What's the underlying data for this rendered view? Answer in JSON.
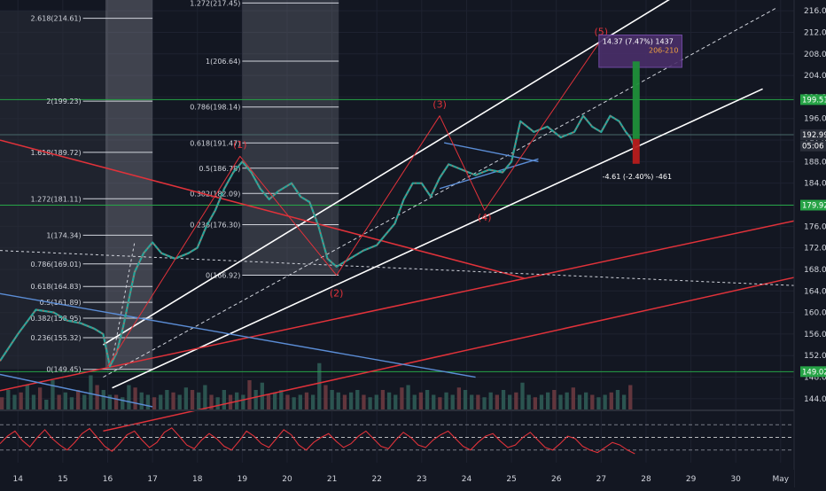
{
  "chart_data": {
    "type": "line",
    "symbol_series": "price (candles)",
    "y_axis": {
      "scale": "linear",
      "ylim": [
        142,
        218
      ],
      "ticks": [
        216,
        212,
        208,
        204,
        200,
        196,
        192,
        188,
        184,
        180,
        176,
        172,
        168,
        164,
        160,
        156,
        152,
        148,
        144
      ],
      "tick_labels": [
        "216.00",
        "212.00",
        "208.00",
        "204.00",
        "200.00",
        "196.00",
        "192.00",
        "188.00",
        "184.00",
        "180.00",
        "176.00",
        "172.00",
        "168.00",
        "164.00",
        "160.00",
        "156.00",
        "152.00",
        "148.00",
        "144.00"
      ]
    },
    "x_axis": {
      "ticks": [
        14,
        15,
        16,
        17,
        18,
        19,
        20,
        21,
        22,
        23,
        24,
        25,
        26,
        27,
        28,
        29,
        30,
        31
      ],
      "tick_labels": [
        "14",
        "15",
        "16",
        "17",
        "18",
        "19",
        "20",
        "21",
        "22",
        "23",
        "24",
        "25",
        "26",
        "27",
        "28",
        "29",
        "30",
        "May"
      ],
      "xlim": [
        13.6,
        31.3
      ]
    },
    "price_path": [
      [
        13.6,
        151.0
      ],
      [
        14.0,
        156.0
      ],
      [
        14.4,
        160.5
      ],
      [
        14.8,
        160.0
      ],
      [
        15.1,
        158.5
      ],
      [
        15.4,
        158.0
      ],
      [
        15.7,
        157.0
      ],
      [
        15.9,
        156.0
      ],
      [
        16.05,
        150.0
      ],
      [
        16.2,
        152.5
      ],
      [
        16.35,
        157.5
      ],
      [
        16.6,
        167.5
      ],
      [
        16.8,
        171.0
      ],
      [
        17.0,
        173.0
      ],
      [
        17.2,
        171.0
      ],
      [
        17.5,
        170.0
      ],
      [
        17.8,
        171.0
      ],
      [
        18.0,
        172.0
      ],
      [
        18.2,
        176.0
      ],
      [
        18.4,
        179.0
      ],
      [
        18.6,
        183.0
      ],
      [
        18.8,
        186.0
      ],
      [
        19.0,
        188.0
      ],
      [
        19.2,
        186.0
      ],
      [
        19.4,
        183.0
      ],
      [
        19.6,
        181.0
      ],
      [
        19.8,
        182.5
      ],
      [
        20.1,
        184.0
      ],
      [
        20.3,
        181.5
      ],
      [
        20.5,
        180.5
      ],
      [
        20.7,
        176.0
      ],
      [
        20.9,
        170.0
      ],
      [
        21.1,
        168.5
      ],
      [
        21.4,
        170.0
      ],
      [
        21.7,
        171.5
      ],
      [
        22.0,
        172.5
      ],
      [
        22.2,
        174.5
      ],
      [
        22.4,
        176.5
      ],
      [
        22.6,
        181.0
      ],
      [
        22.8,
        184.0
      ],
      [
        23.0,
        184.0
      ],
      [
        23.2,
        181.5
      ],
      [
        23.4,
        185.0
      ],
      [
        23.6,
        187.5
      ],
      [
        23.9,
        186.5
      ],
      [
        24.2,
        185.5
      ],
      [
        24.5,
        186.5
      ],
      [
        24.8,
        186.0
      ],
      [
        25.0,
        188.0
      ],
      [
        25.2,
        195.5
      ],
      [
        25.5,
        193.5
      ],
      [
        25.8,
        194.5
      ],
      [
        26.1,
        192.5
      ],
      [
        26.4,
        193.5
      ],
      [
        26.6,
        196.5
      ],
      [
        26.8,
        194.5
      ],
      [
        27.0,
        193.5
      ],
      [
        27.2,
        196.5
      ],
      [
        27.4,
        195.5
      ],
      [
        27.55,
        193.5
      ],
      [
        27.65,
        192.5
      ],
      [
        27.75,
        190.5
      ]
    ],
    "volume_bars": [
      0.25,
      0.4,
      0.3,
      0.35,
      0.5,
      0.3,
      0.45,
      0.2,
      0.6,
      0.3,
      0.35,
      0.25,
      0.4,
      0.3,
      0.7,
      0.5,
      0.4,
      0.3,
      0.3,
      0.25,
      0.5,
      0.45,
      0.35,
      0.3,
      0.25,
      0.3,
      0.4,
      0.35,
      0.3,
      0.45,
      0.4,
      0.35,
      0.5,
      0.3,
      0.25,
      0.4,
      0.3,
      0.35,
      0.3,
      0.6,
      0.4,
      0.55,
      0.3,
      0.35,
      0.4,
      0.3,
      0.25,
      0.3,
      0.35,
      0.3,
      0.95,
      0.5,
      0.4,
      0.35,
      0.3,
      0.35,
      0.4,
      0.3,
      0.25,
      0.3,
      0.4,
      0.35,
      0.3,
      0.45,
      0.5,
      0.3,
      0.35,
      0.4,
      0.3,
      0.25,
      0.35,
      0.3,
      0.45,
      0.4,
      0.3,
      0.3,
      0.25,
      0.35,
      0.3,
      0.4,
      0.3,
      0.35,
      0.55,
      0.3,
      0.25,
      0.3,
      0.35,
      0.4,
      0.3,
      0.35,
      0.45,
      0.3,
      0.35,
      0.3,
      0.25,
      0.3,
      0.35,
      0.4,
      0.3,
      0.5
    ],
    "right_axis_labels": [
      {
        "value": "199.51",
        "price": 199.51,
        "color": "#26a346"
      },
      {
        "value": "192.99",
        "price": 192.99,
        "color": "#2a2e39"
      },
      {
        "value": "05:06",
        "price": 190.9,
        "color": "#2a2e39"
      },
      {
        "value": "179.92",
        "price": 179.92,
        "color": "#26a346"
      },
      {
        "value": "149.02",
        "price": 149.02,
        "color": "#26a346"
      }
    ],
    "horizontal_levels": [
      199.51,
      179.92,
      149.02,
      192.99
    ],
    "fib_left": {
      "labels": [
        "2.618(214.61)",
        "2(199.23)",
        "1.618(189.72)",
        "1.272(181.11)",
        "1(174.34)",
        "0.786(169.01)",
        "0.618(164.83)",
        "0.5(161.89)",
        "0.382(158.95)",
        "0.236(155.32)",
        "0(149.45)"
      ],
      "prices": [
        214.61,
        199.23,
        189.72,
        181.11,
        174.34,
        169.01,
        164.83,
        161.89,
        158.95,
        155.32,
        149.45
      ]
    },
    "fib_right": {
      "labels": [
        "1.272(217.45)",
        "1(206.64)",
        "0.786(198.14)",
        "0.618(191.47)",
        "0.5(186.78)",
        "0.382(182.09)",
        "0.236(176.30)",
        "0(166.92)"
      ],
      "prices": [
        217.45,
        206.64,
        198.14,
        191.47,
        186.78,
        182.09,
        176.3,
        166.92
      ]
    },
    "wave_labels": [
      {
        "text": "(1)",
        "x": 18.95,
        "y": 190.5
      },
      {
        "text": "(2)",
        "x": 21.1,
        "y": 163.0
      },
      {
        "text": "(3)",
        "x": 23.4,
        "y": 198.0
      },
      {
        "text": "(4)",
        "x": 24.4,
        "y": 177.0
      },
      {
        "text": "(5)",
        "x": 27.0,
        "y": 211.5
      }
    ],
    "measure_box_up": {
      "text": "14.37 (7.47%) 1437",
      "target_text": "206-210"
    },
    "measure_down": {
      "text": "-4.61 (-2.40%) -461"
    },
    "oscillator": {
      "levels": [
        "80.00",
        "40.00"
      ],
      "level_values": [
        80,
        40
      ],
      "series": [
        50,
        62,
        70,
        55,
        45,
        60,
        72,
        58,
        48,
        40,
        52,
        66,
        74,
        60,
        46,
        38,
        50,
        64,
        70,
        56,
        44,
        52,
        68,
        75,
        62,
        48,
        42,
        56,
        66,
        58,
        46,
        40,
        54,
        70,
        62,
        50,
        44,
        58,
        72,
        64,
        48,
        40,
        52,
        60,
        66,
        54,
        44,
        50,
        62,
        70,
        58,
        46,
        42,
        56,
        68,
        60,
        48,
        44,
        56,
        64,
        70,
        58,
        46,
        40,
        52,
        62,
        66,
        54,
        44,
        48,
        60,
        68,
        56,
        44,
        40,
        50,
        62,
        58,
        46,
        40,
        36,
        44,
        52,
        48,
        40,
        34
      ]
    }
  }
}
